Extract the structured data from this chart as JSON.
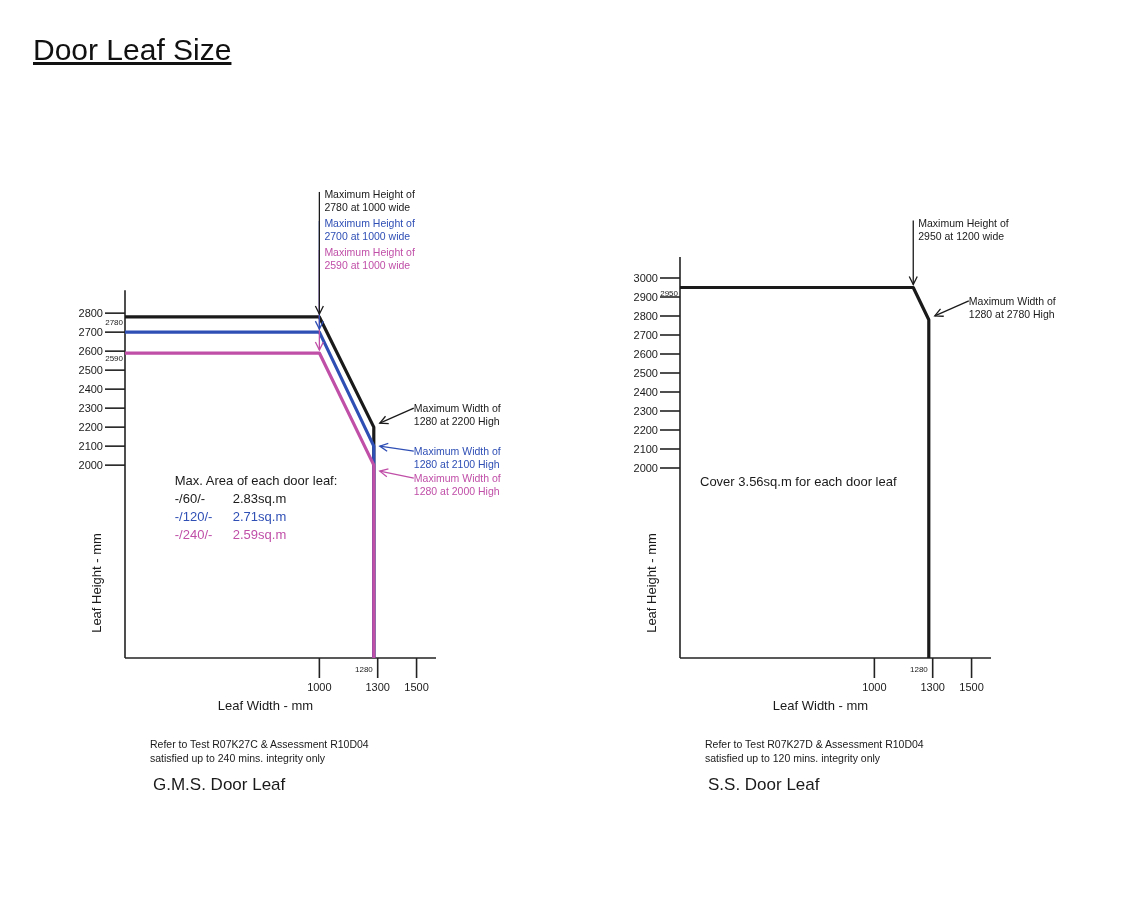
{
  "chart_data": [
    {
      "type": "line",
      "title": "Door Leaf Size",
      "subtitle": "G.M.S. Door Leaf",
      "xlabel": "Leaf Width - mm",
      "ylabel": "Leaf Height - mm",
      "legend_title": "Max. Area of each door leaf:",
      "xlim": [
        0,
        1600
      ],
      "ylim": [
        985,
        2920
      ],
      "xticks": [
        1000,
        1300,
        1500
      ],
      "yticks": [
        2000,
        2100,
        2200,
        2300,
        2400,
        2500,
        2600,
        2700,
        2800
      ],
      "series": [
        {
          "name": "-/60/-    2.83sq.m",
          "color": "#1a1a1a",
          "x": [
            0,
            1000,
            1280,
            1280
          ],
          "values": [
            2780,
            2780,
            2200,
            985
          ]
        },
        {
          "name": "-/120/-    2.71sq.m",
          "color": "#2f4fb5",
          "x": [
            0,
            1000,
            1280,
            1280
          ],
          "values": [
            2700,
            2700,
            2100,
            985
          ]
        },
        {
          "name": "-/240/-    2.59sq.m",
          "color": "#c04fa8",
          "x": [
            0,
            1000,
            1280,
            1280
          ],
          "values": [
            2590,
            2590,
            2000,
            985
          ]
        }
      ],
      "annotations": [
        {
          "text": "Maximum Height of\n2780 at 1000 wide",
          "x": 1000,
          "y": 2780
        },
        {
          "text": "Maximum Height of\n2700 at 1000 wide",
          "x": 1000,
          "y": 2700
        },
        {
          "text": "Maximum Height of\n2590 at 1000 wide",
          "x": 1000,
          "y": 2590
        },
        {
          "text": "Maximum Width of\n1280 at 2200 High",
          "x": 1280,
          "y": 2200
        },
        {
          "text": "Maximum Width of\n1280 at 2100 High",
          "x": 1280,
          "y": 2100
        },
        {
          "text": "Maximum Width of\n1280 at 2000 High",
          "x": 1280,
          "y": 2000
        },
        {
          "text": "2780",
          "x": 0,
          "y": 2780
        },
        {
          "text": "2590",
          "x": 0,
          "y": 2590
        },
        {
          "text": "1280",
          "x": 1280,
          "y": 985
        },
        "Refer to Test R07K27C & Assessment R10D04\nsatisfied up to 240 mins. integrity only"
      ]
    },
    {
      "type": "line",
      "subtitle": "S.S. Door Leaf",
      "xlabel": "Leaf Width - mm",
      "ylabel": "Leaf Height - mm",
      "xlim": [
        0,
        1600
      ],
      "ylim": [
        1000,
        3110
      ],
      "xticks": [
        1000,
        1300,
        1500
      ],
      "yticks": [
        2000,
        2100,
        2200,
        2300,
        2400,
        2500,
        2600,
        2700,
        2800,
        2900,
        3000
      ],
      "series": [
        {
          "color": "#1a1a1a",
          "x": [
            0,
            1200,
            1280,
            1280
          ],
          "values": [
            2950,
            2950,
            2780,
            1000
          ]
        }
      ],
      "annotations": [
        {
          "text": "Maximum Height of\n2950 at 1200 wide",
          "x": 1200,
          "y": 2950
        },
        {
          "text": "Maximum Width of\n1280 at 2780 High",
          "x": 1280,
          "y": 2780
        },
        {
          "text": "2950",
          "x": 0,
          "y": 2950
        },
        {
          "text": "1280",
          "x": 1280,
          "y": 1000
        },
        "Cover 3.56sq.m for each door leaf",
        "Refer to Test R07K27D & Assessment R10D04\nsatisfied up to 120 mins. integrity only"
      ]
    }
  ]
}
